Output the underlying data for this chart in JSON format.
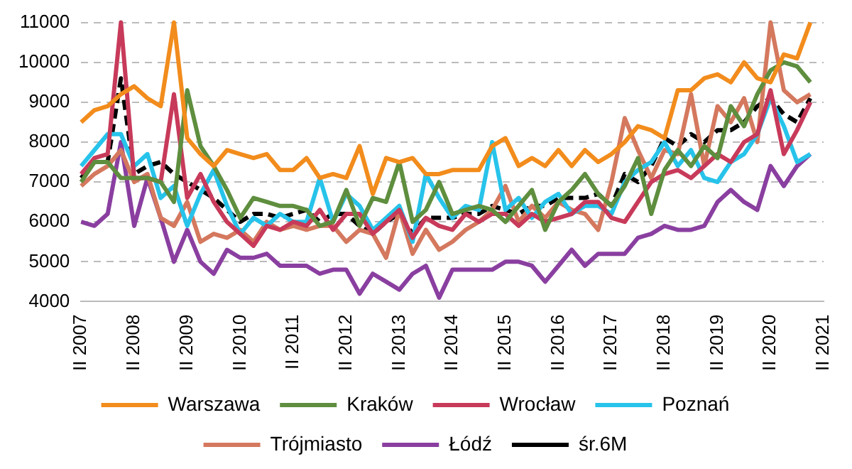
{
  "chart_data": {
    "type": "line",
    "categories": [
      "II 2007",
      null,
      null,
      null,
      "II 2008",
      null,
      null,
      null,
      "II 2009",
      null,
      null,
      null,
      "II 2010",
      null,
      null,
      null,
      "II 2011",
      null,
      null,
      null,
      "II 2012",
      null,
      null,
      null,
      "II 2013",
      null,
      null,
      null,
      "II 2014",
      null,
      null,
      null,
      "II 2015",
      null,
      null,
      null,
      "II 2016",
      null,
      null,
      null,
      "II 2017",
      null,
      null,
      null,
      "II 2018",
      null,
      null,
      null,
      "II 2019",
      null,
      null,
      null,
      "II 2020",
      null,
      null,
      null,
      "II 2021"
    ],
    "ylim": [
      4000,
      11000
    ],
    "yticks": [
      4000,
      5000,
      6000,
      7000,
      8000,
      9000,
      10000,
      11000
    ],
    "grid": "y",
    "legend": "bottom",
    "marker": "none",
    "series": [
      {
        "name": "Warszawa",
        "color": "#f28c1c",
        "line_style": "solid",
        "values": [
          8500,
          8800,
          8900,
          9200,
          9400,
          9100,
          8900,
          11000,
          8100,
          7700,
          7400,
          7800,
          7700,
          7600,
          7700,
          7300,
          7300,
          7600,
          7100,
          7200,
          7100,
          7900,
          6700,
          7600,
          7500,
          7600,
          7200,
          7200,
          7300,
          7300,
          7300,
          7900,
          8100,
          7400,
          7600,
          7400,
          7800,
          7400,
          7800,
          7500,
          7700,
          8000,
          8400,
          8300,
          8100,
          9300,
          9300,
          9600,
          9700,
          9500,
          10000,
          9600,
          9500,
          10200,
          10100,
          11000,
          null
        ]
      },
      {
        "name": "Kraków",
        "color": "#5e8e3e",
        "line_style": "solid",
        "values": [
          7000,
          7500,
          7500,
          7100,
          7100,
          7100,
          7000,
          6500,
          9300,
          7900,
          7400,
          6800,
          6100,
          6600,
          6500,
          6400,
          6400,
          6300,
          5900,
          6000,
          6800,
          5900,
          6600,
          6500,
          7500,
          6000,
          6300,
          7000,
          6200,
          6300,
          6400,
          6300,
          6000,
          6400,
          6800,
          5800,
          6500,
          6800,
          7200,
          6700,
          6400,
          6900,
          7600,
          6200,
          7300,
          7800,
          7400,
          7900,
          7600,
          8900,
          8400,
          9200,
          9800,
          10000,
          9900,
          9500,
          null
        ]
      },
      {
        "name": "Wrocław",
        "color": "#c83a5a",
        "line_style": "solid",
        "values": [
          7200,
          7600,
          7700,
          11000,
          7100,
          7100,
          7000,
          9200,
          6600,
          7200,
          6500,
          6000,
          5700,
          5400,
          5900,
          5800,
          6000,
          5900,
          6300,
          5800,
          6200,
          6200,
          5700,
          6000,
          6300,
          5600,
          6100,
          5900,
          5800,
          6200,
          6000,
          6200,
          6200,
          5900,
          6200,
          6000,
          6100,
          6200,
          6500,
          6500,
          6100,
          6000,
          6500,
          7000,
          7200,
          7300,
          7100,
          7400,
          7700,
          7500,
          8000,
          8200,
          9300,
          7700,
          8300,
          9000,
          null
        ]
      },
      {
        "name": "Poznań",
        "color": "#27c3ea",
        "line_style": "solid",
        "values": [
          7400,
          7800,
          8200,
          8200,
          7400,
          7700,
          6600,
          6900,
          5900,
          6700,
          7300,
          6400,
          5700,
          6100,
          5900,
          6200,
          6000,
          6000,
          7100,
          6000,
          6700,
          6400,
          5800,
          6100,
          6400,
          5500,
          7200,
          6600,
          6100,
          6400,
          6300,
          8000,
          6300,
          6600,
          6100,
          6500,
          6700,
          6200,
          6400,
          6400,
          6200,
          7000,
          7300,
          7500,
          8000,
          7400,
          7800,
          7100,
          7000,
          7500,
          7700,
          8200,
          9100,
          8400,
          7500,
          7700,
          null
        ]
      },
      {
        "name": "Trójmiasto",
        "color": "#d4785e",
        "line_style": "solid",
        "values": [
          6900,
          7200,
          7400,
          7800,
          7000,
          7200,
          6100,
          5900,
          6500,
          5500,
          5700,
          5600,
          5800,
          5500,
          6000,
          5800,
          5900,
          5800,
          5900,
          5900,
          5500,
          5800,
          5700,
          5100,
          6300,
          5200,
          5800,
          5300,
          5500,
          5800,
          6000,
          6300,
          6900,
          6000,
          6400,
          6100,
          6500,
          6300,
          6200,
          5800,
          7000,
          8600,
          7800,
          7100,
          7800,
          7700,
          9200,
          7400,
          8900,
          8500,
          9100,
          8000,
          11000,
          9300,
          9000,
          9200,
          null
        ]
      },
      {
        "name": "Łódź",
        "color": "#8a3fa0",
        "line_style": "solid",
        "values": [
          6000,
          5900,
          6200,
          8000,
          5900,
          7100,
          6100,
          5000,
          5800,
          5000,
          4700,
          5300,
          5100,
          5100,
          5200,
          4900,
          4900,
          4900,
          4700,
          4800,
          4800,
          4200,
          4700,
          4500,
          4300,
          4700,
          4900,
          4100,
          4800,
          4800,
          4800,
          4800,
          5000,
          5000,
          4900,
          4500,
          4900,
          5300,
          4900,
          5200,
          5200,
          5200,
          5600,
          5700,
          5900,
          5800,
          5800,
          5900,
          6500,
          6800,
          6500,
          6300,
          7400,
          6900,
          7400,
          7700,
          null
        ]
      },
      {
        "name": "śr.6M",
        "color": "#000000",
        "line_style": "dashed",
        "values": [
          7100,
          7500,
          7500,
          9600,
          7200,
          7400,
          7500,
          7200,
          7000,
          6800,
          6600,
          6300,
          6000,
          6200,
          6200,
          6100,
          6200,
          6300,
          6000,
          6200,
          6200,
          5900,
          5700,
          6000,
          6200,
          5700,
          6100,
          6100,
          6100,
          6200,
          6200,
          6400,
          6300,
          6200,
          6400,
          6400,
          6600,
          6600,
          6600,
          6700,
          6400,
          7200,
          7000,
          7400,
          8100,
          7900,
          8200,
          8000,
          8300,
          8300,
          8500,
          8900,
          9100,
          8700,
          8500,
          9100,
          null
        ]
      }
    ]
  }
}
